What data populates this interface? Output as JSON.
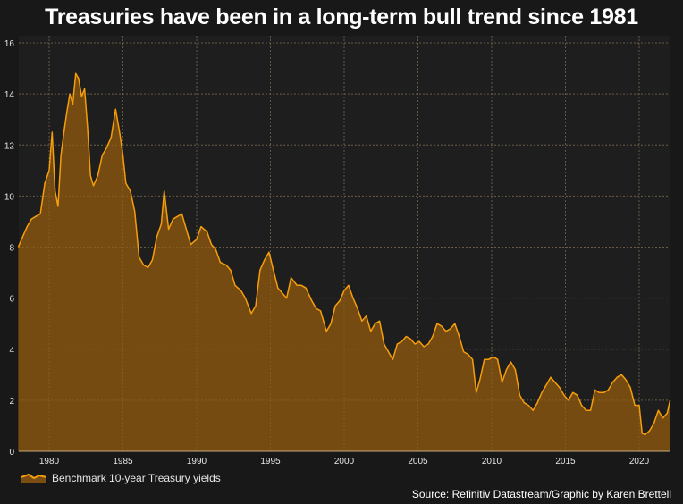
{
  "title": "Treasuries have been in a long-term bull trend since 1981",
  "legend": {
    "label": "Benchmark 10-year Treasury yields"
  },
  "source": "Source: Refinitiv Datastream/Graphic by Karen Brettell",
  "colors": {
    "line": "#f59e0b",
    "fill": "#7a4e12",
    "plot_bg": "#1e1e1e",
    "page_bg": "#181818",
    "grid": "#555555"
  },
  "chart_data": {
    "type": "area",
    "title": "Treasuries have been in a long-term bull trend since 1981",
    "xlabel": "",
    "ylabel": "",
    "xlim": [
      1977.9,
      2022.1
    ],
    "ylim": [
      0,
      16
    ],
    "yticks": [
      0,
      2,
      4,
      6,
      8,
      10,
      12,
      14,
      16
    ],
    "xticks": [
      1980,
      1985,
      1990,
      1995,
      2000,
      2005,
      2010,
      2015,
      2020
    ],
    "grid": true,
    "legend_position": "bottom-left",
    "series": [
      {
        "name": "Benchmark 10-year Treasury yields",
        "x": [
          1977.9,
          1978.2,
          1978.5,
          1978.8,
          1979.1,
          1979.4,
          1979.7,
          1980.0,
          1980.2,
          1980.4,
          1980.6,
          1980.8,
          1981.0,
          1981.2,
          1981.4,
          1981.6,
          1981.8,
          1982.0,
          1982.2,
          1982.4,
          1982.6,
          1982.8,
          1983.0,
          1983.3,
          1983.6,
          1983.9,
          1984.2,
          1984.5,
          1984.8,
          1985.0,
          1985.2,
          1985.5,
          1985.8,
          1986.1,
          1986.4,
          1986.7,
          1987.0,
          1987.3,
          1987.6,
          1987.8,
          1988.1,
          1988.4,
          1988.7,
          1989.0,
          1989.3,
          1989.6,
          1990.0,
          1990.3,
          1990.7,
          1991.0,
          1991.3,
          1991.6,
          1992.0,
          1992.3,
          1992.6,
          1993.0,
          1993.3,
          1993.7,
          1994.0,
          1994.3,
          1994.6,
          1994.9,
          1995.2,
          1995.5,
          1995.8,
          1996.1,
          1996.4,
          1996.8,
          1997.1,
          1997.4,
          1997.8,
          1998.1,
          1998.4,
          1998.8,
          1999.1,
          1999.4,
          1999.7,
          2000.0,
          2000.3,
          2000.6,
          2000.9,
          2001.2,
          2001.5,
          2001.8,
          2002.1,
          2002.4,
          2002.7,
          2003.0,
          2003.3,
          2003.6,
          2003.9,
          2004.2,
          2004.5,
          2004.8,
          2005.1,
          2005.4,
          2005.7,
          2006.0,
          2006.3,
          2006.6,
          2006.9,
          2007.2,
          2007.5,
          2007.8,
          2008.1,
          2008.4,
          2008.7,
          2008.95,
          2009.2,
          2009.5,
          2009.8,
          2010.1,
          2010.4,
          2010.7,
          2011.0,
          2011.3,
          2011.6,
          2011.9,
          2012.2,
          2012.5,
          2012.8,
          2013.1,
          2013.4,
          2013.7,
          2014.0,
          2014.3,
          2014.6,
          2014.9,
          2015.2,
          2015.5,
          2015.8,
          2016.1,
          2016.4,
          2016.7,
          2017.0,
          2017.3,
          2017.6,
          2017.9,
          2018.2,
          2018.5,
          2018.8,
          2019.1,
          2019.4,
          2019.7,
          2020.0,
          2020.2,
          2020.4,
          2020.7,
          2021.0,
          2021.3,
          2021.6,
          2021.9,
          2022.1
        ],
        "values": [
          8.0,
          8.4,
          8.8,
          9.1,
          9.2,
          9.3,
          10.5,
          11.0,
          12.5,
          10.2,
          9.6,
          11.6,
          12.5,
          13.3,
          14.0,
          13.6,
          14.8,
          14.6,
          13.9,
          14.2,
          12.7,
          10.8,
          10.4,
          10.8,
          11.6,
          11.9,
          12.3,
          13.4,
          12.4,
          11.6,
          10.5,
          10.2,
          9.4,
          7.6,
          7.3,
          7.2,
          7.5,
          8.4,
          8.9,
          10.2,
          8.7,
          9.1,
          9.2,
          9.3,
          8.7,
          8.1,
          8.3,
          8.8,
          8.6,
          8.1,
          7.9,
          7.4,
          7.3,
          7.1,
          6.5,
          6.3,
          6.0,
          5.4,
          5.7,
          7.1,
          7.5,
          7.8,
          7.1,
          6.4,
          6.2,
          6.0,
          6.8,
          6.5,
          6.5,
          6.4,
          5.9,
          5.6,
          5.5,
          4.7,
          5.0,
          5.7,
          5.9,
          6.3,
          6.5,
          6.0,
          5.6,
          5.1,
          5.3,
          4.7,
          5.0,
          5.1,
          4.2,
          3.9,
          3.6,
          4.2,
          4.3,
          4.5,
          4.4,
          4.2,
          4.3,
          4.1,
          4.2,
          4.5,
          5.0,
          4.9,
          4.7,
          4.8,
          5.0,
          4.5,
          3.9,
          3.8,
          3.6,
          2.3,
          2.8,
          3.6,
          3.6,
          3.7,
          3.6,
          2.7,
          3.2,
          3.5,
          3.2,
          2.2,
          1.9,
          1.8,
          1.6,
          1.9,
          2.3,
          2.6,
          2.9,
          2.7,
          2.5,
          2.2,
          2.0,
          2.3,
          2.2,
          1.8,
          1.6,
          1.6,
          2.4,
          2.3,
          2.3,
          2.4,
          2.7,
          2.9,
          3.0,
          2.8,
          2.5,
          1.8,
          1.8,
          0.7,
          0.65,
          0.8,
          1.1,
          1.6,
          1.3,
          1.5,
          2.0
        ]
      }
    ]
  }
}
